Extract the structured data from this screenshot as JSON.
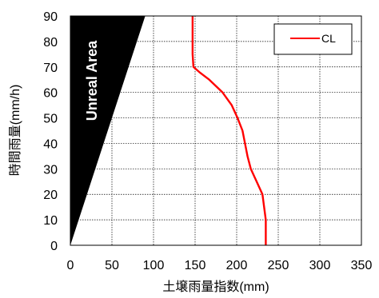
{
  "chart_data": {
    "type": "line",
    "xlabel": "土壌雨量指数(mm)",
    "ylabel": "時間雨量(mm/h)",
    "xlim": [
      0,
      350
    ],
    "ylim": [
      0,
      90
    ],
    "xticks": [
      0,
      50,
      100,
      150,
      200,
      250,
      300,
      350
    ],
    "yticks": [
      0,
      10,
      20,
      30,
      40,
      50,
      60,
      70,
      80,
      90
    ],
    "grid": "dotted",
    "legend_position": "top-right",
    "series": [
      {
        "name": "CL",
        "color": "#ff0000",
        "points": [
          {
            "x": 235,
            "y": 0
          },
          {
            "x": 235,
            "y": 10
          },
          {
            "x": 233,
            "y": 15
          },
          {
            "x": 231,
            "y": 20
          },
          {
            "x": 224,
            "y": 25
          },
          {
            "x": 217,
            "y": 30
          },
          {
            "x": 213,
            "y": 35
          },
          {
            "x": 210,
            "y": 40
          },
          {
            "x": 207,
            "y": 45
          },
          {
            "x": 201,
            "y": 50
          },
          {
            "x": 194,
            "y": 55
          },
          {
            "x": 183,
            "y": 60
          },
          {
            "x": 167,
            "y": 65
          },
          {
            "x": 155,
            "y": 68
          },
          {
            "x": 148,
            "y": 70
          },
          {
            "x": 147,
            "y": 75
          },
          {
            "x": 147,
            "y": 90
          }
        ]
      }
    ],
    "unreal_region": {
      "label": "Unreal Area",
      "color": "#000000",
      "boundary": [
        {
          "x": 0,
          "y": 0
        },
        {
          "x": 90,
          "y": 90
        },
        {
          "x": 0,
          "y": 90
        }
      ]
    }
  }
}
